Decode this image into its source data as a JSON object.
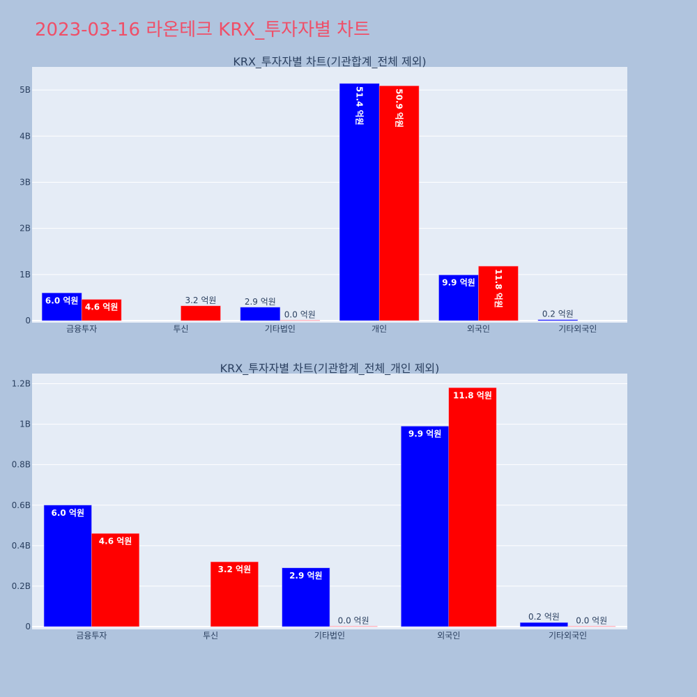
{
  "title": "2023-03-16 라온테크 KRX_투자자별 차트",
  "colors": {
    "background": "#b0c4de",
    "plot_bg": "#e5ecf6",
    "title": "#ef4f68",
    "series_a": "#0000ff",
    "series_b": "#ff0000"
  },
  "chart_data": [
    {
      "type": "bar",
      "title": "KRX_투자자별 차트(기관합계_전체 제외)",
      "categories": [
        "금융투자",
        "투신",
        "기타법인",
        "개인",
        "외국인",
        "기타외국인"
      ],
      "ylim": [
        0,
        5500000000
      ],
      "yticks": [
        0,
        1000000000,
        2000000000,
        3000000000,
        4000000000,
        5000000000
      ],
      "ytick_labels": [
        "0",
        "1B",
        "2B",
        "3B",
        "4B",
        "5B"
      ],
      "grid": true,
      "series": [
        {
          "color": "#0000ff",
          "values": [
            600000000,
            null,
            290000000,
            5140000000,
            990000000,
            20000000
          ],
          "labels": [
            "6.0 억원",
            null,
            "2.9 억원",
            "51.4 억원",
            "9.9 억원",
            "0.2 억원"
          ]
        },
        {
          "color": "#ff0000",
          "values": [
            460000000,
            320000000,
            0,
            5090000000,
            1180000000,
            null
          ],
          "labels": [
            "4.6 억원",
            "3.2 억원",
            "0.0 억원",
            "50.9 억원",
            "11.8 억원",
            null
          ]
        }
      ]
    },
    {
      "type": "bar",
      "title": "KRX_투자자별 차트(기관합계_전체_개인 제외)",
      "categories": [
        "금융투자",
        "투신",
        "기타법인",
        "외국인",
        "기타외국인"
      ],
      "ylim": [
        0,
        1250000000
      ],
      "yticks": [
        0,
        200000000,
        400000000,
        600000000,
        800000000,
        1000000000,
        1200000000
      ],
      "ytick_labels": [
        "0",
        "0.2B",
        "0.4B",
        "0.6B",
        "0.8B",
        "1B",
        "1.2B"
      ],
      "grid": true,
      "series": [
        {
          "color": "#0000ff",
          "values": [
            600000000,
            null,
            290000000,
            990000000,
            20000000
          ],
          "labels": [
            "6.0 억원",
            null,
            "2.9 억원",
            "9.9 억원",
            "0.2 억원"
          ]
        },
        {
          "color": "#ff0000",
          "values": [
            460000000,
            320000000,
            0,
            1180000000,
            0
          ],
          "labels": [
            "4.6 억원",
            "3.2 억원",
            "0.0 억원",
            "11.8 억원",
            "0.0 억원"
          ]
        }
      ]
    }
  ]
}
